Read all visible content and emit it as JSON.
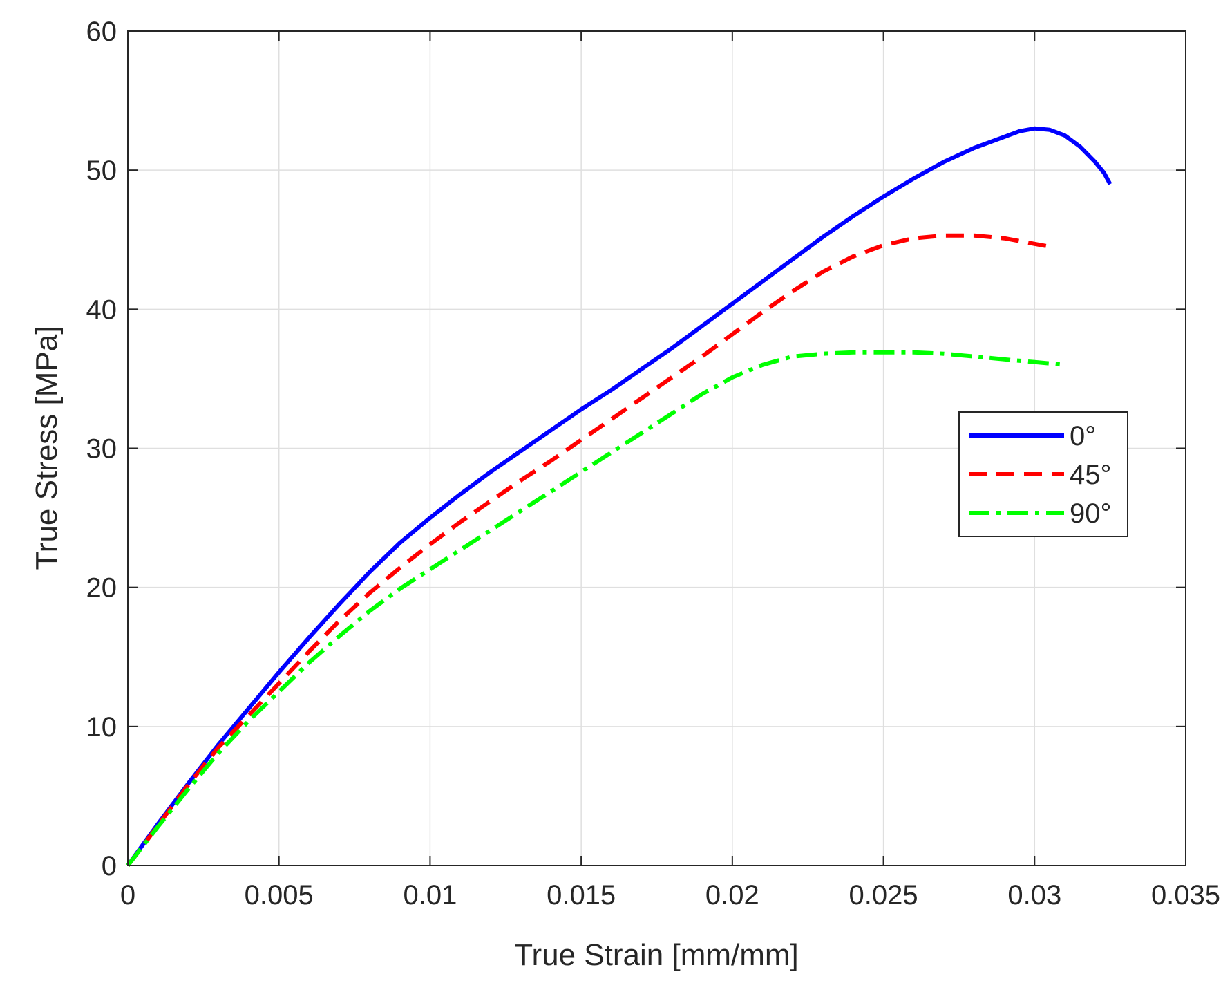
{
  "chart_data": {
    "type": "line",
    "title": "",
    "xlabel": "True Strain [mm/mm]",
    "ylabel": "True Stress [MPa]",
    "xlim": [
      0,
      0.035
    ],
    "ylim": [
      0,
      60
    ],
    "xticks": [
      0,
      0.005,
      0.01,
      0.015,
      0.02,
      0.025,
      0.03,
      0.035
    ],
    "xtick_labels": [
      "0",
      "0.005",
      "0.01",
      "0.015",
      "0.02",
      "0.025",
      "0.03",
      "0.035"
    ],
    "yticks": [
      0,
      10,
      20,
      30,
      40,
      50,
      60
    ],
    "ytick_labels": [
      "0",
      "10",
      "20",
      "30",
      "40",
      "50",
      "60"
    ],
    "grid": true,
    "legend_position": "right",
    "series": [
      {
        "name": "0°",
        "color": "#0000ff",
        "style": "solid",
        "x": [
          0,
          0.0005,
          0.001,
          0.002,
          0.003,
          0.004,
          0.005,
          0.006,
          0.007,
          0.008,
          0.009,
          0.01,
          0.011,
          0.012,
          0.013,
          0.014,
          0.015,
          0.016,
          0.017,
          0.018,
          0.019,
          0.02,
          0.021,
          0.022,
          0.023,
          0.024,
          0.025,
          0.026,
          0.027,
          0.028,
          0.029,
          0.0295,
          0.03,
          0.0305,
          0.031,
          0.0315,
          0.032,
          0.0323,
          0.0325
        ],
        "y": [
          0,
          1.5,
          3.0,
          5.9,
          8.7,
          11.3,
          13.9,
          16.4,
          18.8,
          21.1,
          23.2,
          25.0,
          26.7,
          28.3,
          29.8,
          31.3,
          32.8,
          34.2,
          35.7,
          37.2,
          38.8,
          40.4,
          42.0,
          43.6,
          45.2,
          46.7,
          48.1,
          49.4,
          50.6,
          51.6,
          52.4,
          52.8,
          53.0,
          52.9,
          52.5,
          51.7,
          50.6,
          49.8,
          49.0
        ]
      },
      {
        "name": "45°",
        "color": "#ff0000",
        "style": "dashed",
        "x": [
          0,
          0.0005,
          0.001,
          0.002,
          0.003,
          0.004,
          0.005,
          0.006,
          0.007,
          0.008,
          0.009,
          0.01,
          0.011,
          0.012,
          0.013,
          0.014,
          0.015,
          0.016,
          0.017,
          0.018,
          0.019,
          0.02,
          0.021,
          0.022,
          0.023,
          0.024,
          0.025,
          0.026,
          0.027,
          0.028,
          0.029,
          0.03,
          0.0305
        ],
        "y": [
          0,
          1.4,
          2.9,
          5.8,
          8.5,
          10.8,
          13.1,
          15.4,
          17.6,
          19.6,
          21.4,
          23.1,
          24.7,
          26.2,
          27.7,
          29.1,
          30.6,
          32.1,
          33.6,
          35.1,
          36.6,
          38.2,
          39.8,
          41.3,
          42.7,
          43.8,
          44.6,
          45.1,
          45.3,
          45.3,
          45.1,
          44.7,
          44.5
        ]
      },
      {
        "name": "90°",
        "color": "#00ff00",
        "style": "dashdot",
        "x": [
          0,
          0.0005,
          0.001,
          0.002,
          0.003,
          0.004,
          0.005,
          0.006,
          0.007,
          0.008,
          0.009,
          0.01,
          0.011,
          0.012,
          0.013,
          0.014,
          0.015,
          0.016,
          0.017,
          0.018,
          0.019,
          0.02,
          0.021,
          0.022,
          0.023,
          0.024,
          0.025,
          0.026,
          0.027,
          0.028,
          0.029,
          0.03,
          0.031
        ],
        "y": [
          0,
          1.4,
          2.8,
          5.5,
          8.1,
          10.4,
          12.5,
          14.6,
          16.5,
          18.3,
          19.9,
          21.3,
          22.7,
          24.1,
          25.5,
          26.9,
          28.3,
          29.7,
          31.1,
          32.5,
          33.9,
          35.1,
          36.0,
          36.6,
          36.8,
          36.9,
          36.9,
          36.9,
          36.8,
          36.6,
          36.4,
          36.2,
          36.0
        ]
      }
    ]
  }
}
